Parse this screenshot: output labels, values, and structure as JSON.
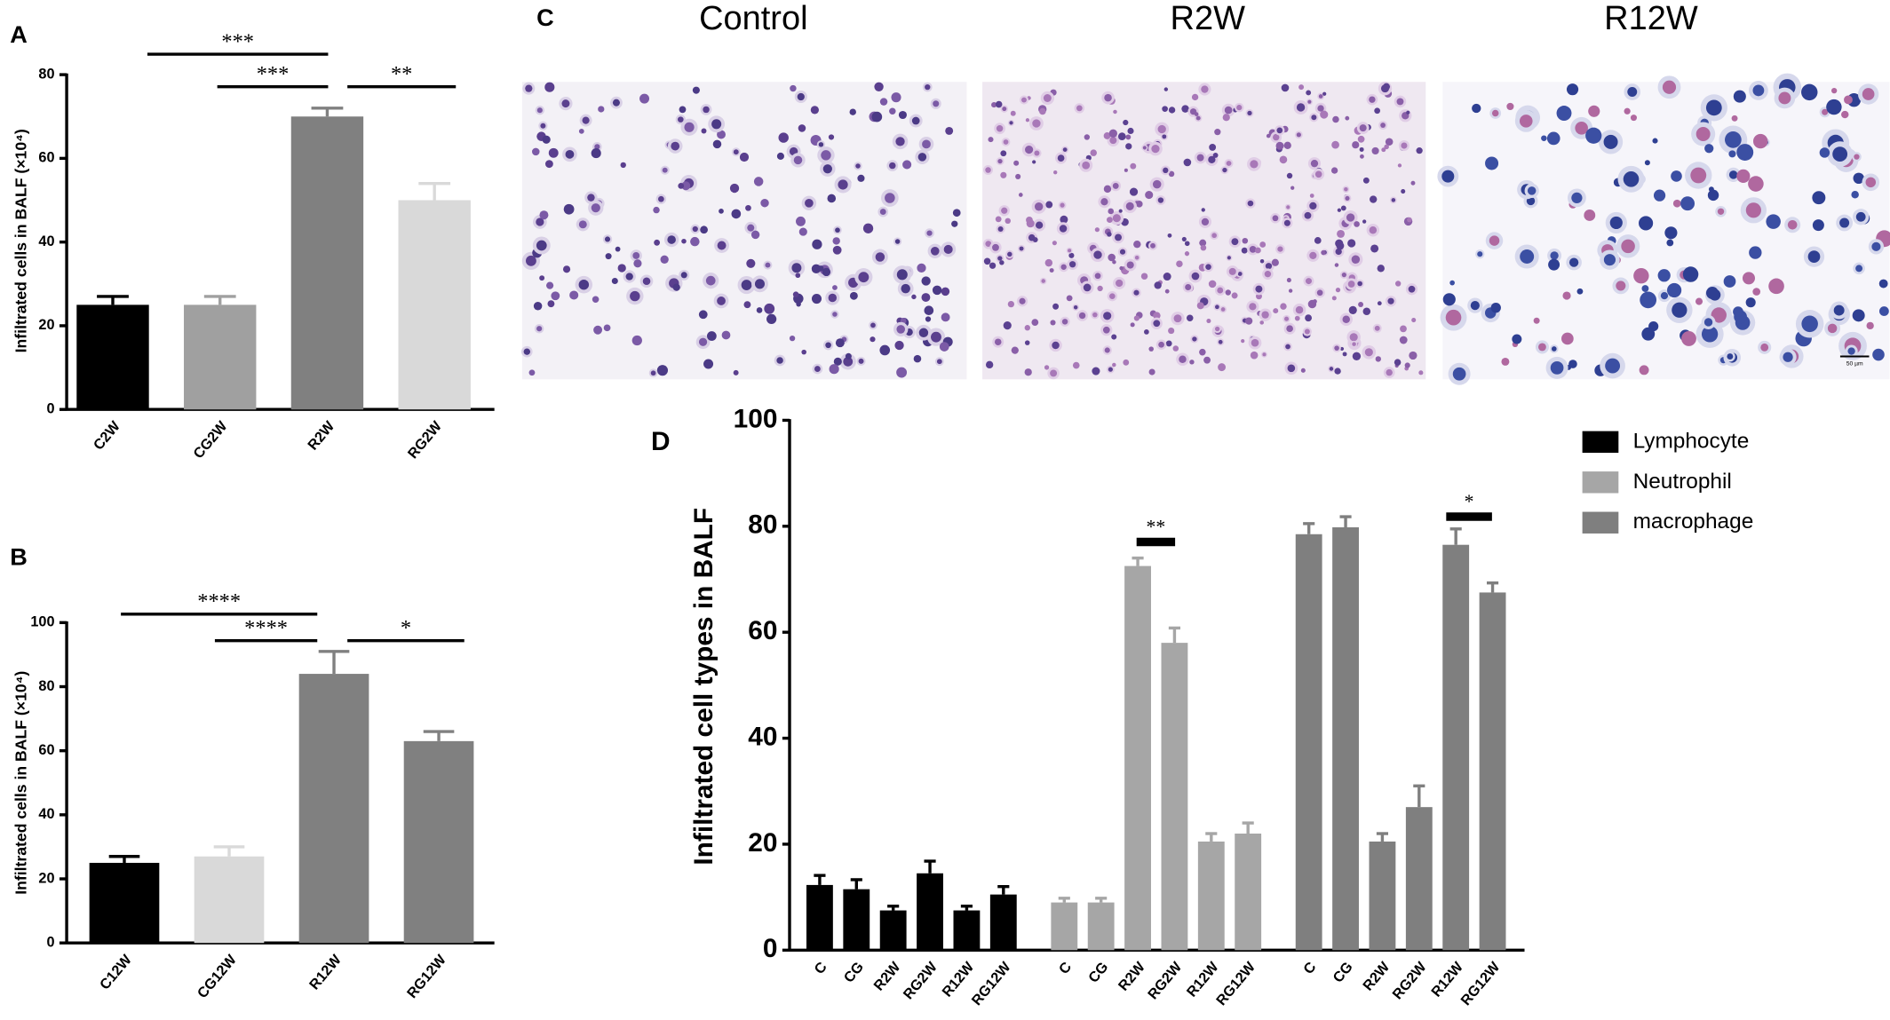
{
  "chart_data": [
    {
      "panel_label": "A",
      "type": "bar",
      "y_label": "Infiltrated cells in BALF (×10⁴)",
      "categories": [
        "C2W",
        "CG2W",
        "R2W",
        "RG2W"
      ],
      "values": [
        25,
        25,
        70,
        50
      ],
      "errors": [
        2,
        2,
        2,
        4
      ],
      "colors": [
        "#000000",
        "#a0a0a0",
        "#808080",
        "#d9d9d9"
      ],
      "ylim": [
        0,
        80
      ],
      "yticks": [
        0,
        20,
        40,
        60,
        80
      ],
      "annotations": [
        "***",
        "***",
        "**"
      ]
    },
    {
      "panel_label": "B",
      "type": "bar",
      "y_label": "Infiltrated cells in BALF (×10⁴)",
      "categories": [
        "C12W",
        "CG12W",
        "R12W",
        "RG12W"
      ],
      "values": [
        25,
        27,
        84,
        63
      ],
      "errors": [
        2,
        3,
        7,
        3
      ],
      "colors": [
        "#000000",
        "#d9d9d9",
        "#808080",
        "#808080"
      ],
      "ylim": [
        0,
        100
      ],
      "yticks": [
        0,
        20,
        40,
        60,
        80,
        100
      ],
      "annotations": [
        "****",
        "****",
        "*"
      ]
    },
    {
      "panel_label": "D",
      "type": "grouped_bar",
      "y_label": "Infiltrated cell types in BALF",
      "categories": [
        "C",
        "CG",
        "R2W",
        "RG2W",
        "R12W",
        "RG12W"
      ],
      "series": [
        {
          "name": "Lymphocyte",
          "color": "#000000",
          "values": [
            12.3,
            11.5,
            7.5,
            14.5,
            7.5,
            10.5
          ],
          "errors": [
            1.8,
            1.8,
            0.8,
            2.3,
            0.8,
            1.5
          ]
        },
        {
          "name": "Neutrophil",
          "color": "#a6a6a6",
          "values": [
            9,
            9,
            72.5,
            58,
            20.5,
            22
          ],
          "errors": [
            0.8,
            0.8,
            1.5,
            2.8,
            1.5,
            2
          ]
        },
        {
          "name": "macrophage",
          "color": "#7f7f7f",
          "values": [
            78.5,
            79.8,
            20.5,
            27,
            76.5,
            67.5
          ],
          "errors": [
            2,
            2,
            1.5,
            4,
            3,
            1.8
          ]
        }
      ],
      "ylim": [
        0,
        100
      ],
      "yticks": [
        0,
        20,
        40,
        60,
        80,
        100
      ],
      "annotations": [
        "**",
        "*"
      ]
    }
  ],
  "micrographs": {
    "panel_label": "C",
    "titles": [
      "Control",
      "R2W",
      "R12W"
    ],
    "scale_bar": "50 µm"
  }
}
